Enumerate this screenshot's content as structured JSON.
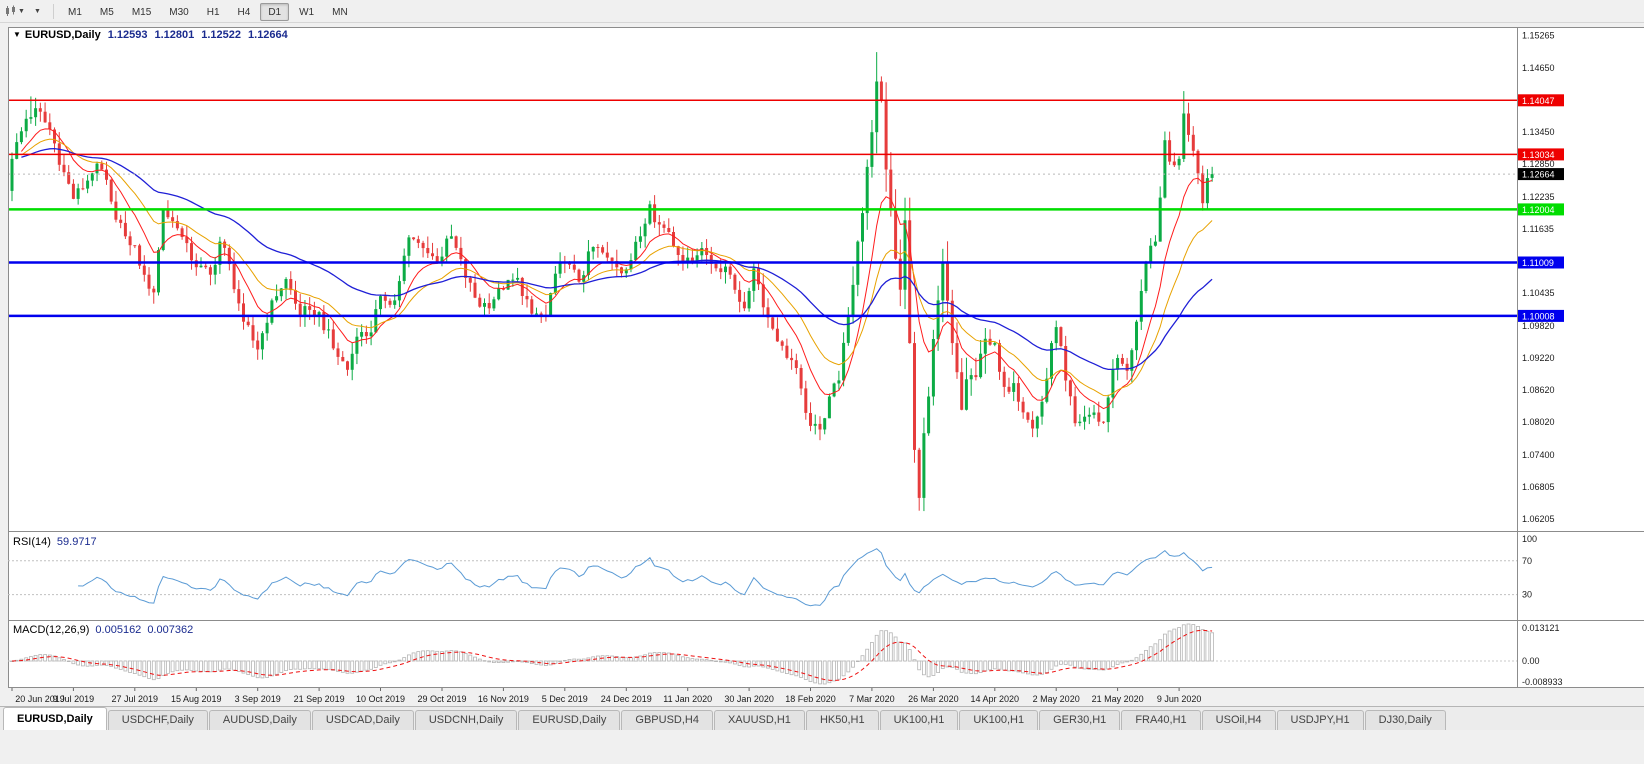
{
  "toolbar": {
    "timeframes": [
      {
        "label": "M1",
        "active": false
      },
      {
        "label": "M5",
        "active": false
      },
      {
        "label": "M15",
        "active": false
      },
      {
        "label": "M30",
        "active": false
      },
      {
        "label": "H1",
        "active": false
      },
      {
        "label": "H4",
        "active": false
      },
      {
        "label": "D1",
        "active": true
      },
      {
        "label": "W1",
        "active": false
      },
      {
        "label": "MN",
        "active": false
      }
    ]
  },
  "chart_header": {
    "symbol_label": "EURUSD,Daily",
    "open": "1.12593",
    "high": "1.12801",
    "low": "1.12522",
    "close": "1.12664"
  },
  "rsi_header": {
    "label": "RSI(14)",
    "value": "59.9717"
  },
  "macd_header": {
    "label": "MACD(12,26,9)",
    "macd_value": "0.005162",
    "signal_value": "0.007362"
  },
  "tabs": [
    {
      "label": "EURUSD,Daily",
      "active": true
    },
    {
      "label": "USDCHF,Daily",
      "active": false
    },
    {
      "label": "AUDUSD,Daily",
      "active": false
    },
    {
      "label": "USDCAD,Daily",
      "active": false
    },
    {
      "label": "USDCNH,Daily",
      "active": false
    },
    {
      "label": "EURUSD,Daily",
      "active": false
    },
    {
      "label": "GBPUSD,H4",
      "active": false
    },
    {
      "label": "XAUUSD,H1",
      "active": false
    },
    {
      "label": "HK50,H1",
      "active": false
    },
    {
      "label": "UK100,H1",
      "active": false
    },
    {
      "label": "UK100,H1",
      "active": false
    },
    {
      "label": "GER30,H1",
      "active": false
    },
    {
      "label": "FRA40,H1",
      "active": false
    },
    {
      "label": "USOil,H4",
      "active": false
    },
    {
      "label": "USDJPY,H1",
      "active": false
    },
    {
      "label": "DJ30,Daily",
      "active": false
    }
  ],
  "chart_data": {
    "type": "candlestick",
    "title": "EURUSD,Daily",
    "bars": 255,
    "bars_per_label": 13,
    "x_labels": [
      "20 Jun 2019",
      "9 Jul 2019",
      "27 Jul 2019",
      "15 Aug 2019",
      "3 Sep 2019",
      "21 Sep 2019",
      "10 Oct 2019",
      "29 Oct 2019",
      "16 Nov 2019",
      "5 Dec 2019",
      "24 Dec 2019",
      "11 Jan 2020",
      "30 Jan 2020",
      "18 Feb 2020",
      "7 Mar 2020",
      "26 Mar 2020",
      "14 Apr 2020",
      "2 May 2020",
      "21 May 2020",
      "9 Jun 2020"
    ],
    "ylim": [
      1.0598,
      1.1542
    ],
    "price_ticks": [
      "1.15265",
      "1.14650",
      "1.13450",
      "1.12850",
      "1.12235",
      "1.11635",
      "1.10435",
      "1.09820",
      "1.09220",
      "1.08620",
      "1.08020",
      "1.07400",
      "1.06805",
      "1.06205"
    ],
    "hlines": [
      {
        "value": 1.14047,
        "label": "1.14047",
        "color": "#ee0000",
        "width": 1.5
      },
      {
        "value": 1.13034,
        "label": "1.13034",
        "color": "#ee0000",
        "width": 1.5
      },
      {
        "value": 1.12004,
        "label": "1.12004",
        "color": "#00dd00",
        "width": 2.5
      },
      {
        "value": 1.11009,
        "label": "1.11009",
        "color": "#0000ee",
        "width": 2.5
      },
      {
        "value": 1.10008,
        "label": "1.10008",
        "color": "#0000ee",
        "width": 2.5
      }
    ],
    "last_price": {
      "value": 1.12664,
      "label": "1.12664",
      "box_color": "#000000"
    },
    "colors": {
      "bull": "#0cab45",
      "bear": "#e63c3c",
      "ma_fast": "#ff1c1c",
      "ma_mid": "#e8a200",
      "ma_slow": "#1f1fd6",
      "rsi_line": "#5b9bd5",
      "macd_hist": "#b5b5b5",
      "macd_signal": "#ee1111"
    },
    "ma_periods": {
      "fast": 10,
      "mid": 21,
      "slow": 50
    },
    "close_anchors": [
      [
        0,
        1.1295
      ],
      [
        3,
        1.137
      ],
      [
        5,
        1.139
      ],
      [
        8,
        1.135
      ],
      [
        11,
        1.127
      ],
      [
        13,
        1.122
      ],
      [
        17,
        1.1268
      ],
      [
        19,
        1.1275
      ],
      [
        21,
        1.1215
      ],
      [
        24,
        1.115
      ],
      [
        26,
        1.1133
      ],
      [
        28,
        1.1078
      ],
      [
        30,
        1.1045
      ],
      [
        32,
        1.12
      ],
      [
        35,
        1.1165
      ],
      [
        38,
        1.1105
      ],
      [
        39,
        1.1092
      ],
      [
        42,
        1.1078
      ],
      [
        44,
        1.114
      ],
      [
        46,
        1.1098
      ],
      [
        49,
        1.099
      ],
      [
        52,
        1.0938
      ],
      [
        55,
        1.103
      ],
      [
        58,
        1.107
      ],
      [
        61,
        1.1
      ],
      [
        63,
        1.1012
      ],
      [
        65,
        1.1008
      ],
      [
        68,
        1.094
      ],
      [
        71,
        1.09
      ],
      [
        73,
        1.0962
      ],
      [
        76,
        1.097
      ],
      [
        78,
        1.1038
      ],
      [
        81,
        1.103
      ],
      [
        84,
        1.1148
      ],
      [
        87,
        1.1128
      ],
      [
        90,
        1.1102
      ],
      [
        93,
        1.115
      ],
      [
        96,
        1.1072
      ],
      [
        99,
        1.1018
      ],
      [
        102,
        1.1032
      ],
      [
        104,
        1.105
      ],
      [
        107,
        1.1072
      ],
      [
        110,
        1.1005
      ],
      [
        113,
        1.1
      ],
      [
        115,
        1.108
      ],
      [
        117,
        1.11
      ],
      [
        120,
        1.1065
      ],
      [
        123,
        1.113
      ],
      [
        126,
        1.111
      ],
      [
        128,
        1.1092
      ],
      [
        130,
        1.1088
      ],
      [
        133,
        1.115
      ],
      [
        135,
        1.121
      ],
      [
        137,
        1.1172
      ],
      [
        139,
        1.1158
      ],
      [
        141,
        1.1115
      ],
      [
        143,
        1.111
      ],
      [
        146,
        1.1128
      ],
      [
        149,
        1.109
      ],
      [
        152,
        1.1078
      ],
      [
        155,
        1.1015
      ],
      [
        157,
        1.109
      ],
      [
        160,
        1.0998
      ],
      [
        163,
        1.0945
      ],
      [
        165,
        1.0918
      ],
      [
        167,
        1.0865
      ],
      [
        169,
        1.0795
      ],
      [
        171,
        1.0788
      ],
      [
        173,
        1.085
      ],
      [
        175,
        1.088
      ],
      [
        177,
        1.1
      ],
      [
        179,
        1.114
      ],
      [
        181,
        1.128
      ],
      [
        183,
        1.144
      ],
      [
        184,
        1.1405
      ],
      [
        185,
        1.1275
      ],
      [
        186,
        1.12
      ],
      [
        187,
        1.1108
      ],
      [
        188,
        1.105
      ],
      [
        189,
        1.118
      ],
      [
        190,
        1.095
      ],
      [
        191,
        1.075
      ],
      [
        192,
        1.066
      ],
      [
        194,
        1.085
      ],
      [
        196,
        1.103
      ],
      [
        197,
        1.11
      ],
      [
        199,
        1.095
      ],
      [
        201,
        1.0825
      ],
      [
        203,
        1.089
      ],
      [
        205,
        1.093
      ],
      [
        208,
        1.095
      ],
      [
        210,
        1.0868
      ],
      [
        212,
        1.0875
      ],
      [
        214,
        1.082
      ],
      [
        216,
        1.079
      ],
      [
        218,
        1.084
      ],
      [
        220,
        1.095
      ],
      [
        221,
        1.098
      ],
      [
        223,
        1.088
      ],
      [
        225,
        1.08
      ],
      [
        227,
        1.0812
      ],
      [
        229,
        1.082
      ],
      [
        231,
        1.0802
      ],
      [
        233,
        1.09
      ],
      [
        234,
        1.0922
      ],
      [
        236,
        1.0898
      ],
      [
        238,
        1.099
      ],
      [
        240,
        1.11
      ],
      [
        242,
        1.114
      ],
      [
        244,
        1.133
      ],
      [
        245,
        1.129
      ],
      [
        247,
        1.1295
      ],
      [
        248,
        1.138
      ],
      [
        249,
        1.134
      ],
      [
        250,
        1.131
      ],
      [
        251,
        1.1268
      ],
      [
        252,
        1.1212
      ],
      [
        253,
        1.1259
      ],
      [
        254,
        1.12664
      ]
    ],
    "wick_overrides": {
      "4": {
        "h": 1.1412
      },
      "183": {
        "h": 1.1495
      },
      "192": {
        "l": 1.0636
      },
      "248": {
        "h": 1.1422
      },
      "252": {
        "l": 1.1198
      }
    },
    "last_bar": {
      "o": 1.12593,
      "h": 1.12801,
      "l": 1.12522,
      "c": 1.12664
    },
    "rsi_panel": {
      "name": "RSI(14)",
      "value": 59.9717,
      "period": 14,
      "axis_labels": [
        "100",
        "70",
        "30"
      ],
      "levels": [
        70,
        30
      ],
      "range": [
        0,
        104
      ]
    },
    "macd_panel": {
      "name": "MACD(12,26,9)",
      "macd": 0.005162,
      "signal": 0.007362,
      "fast": 12,
      "slow": 26,
      "signal_period": 9,
      "axis_labels": [
        "0.013121",
        "0.00",
        "-0.008933"
      ]
    }
  }
}
